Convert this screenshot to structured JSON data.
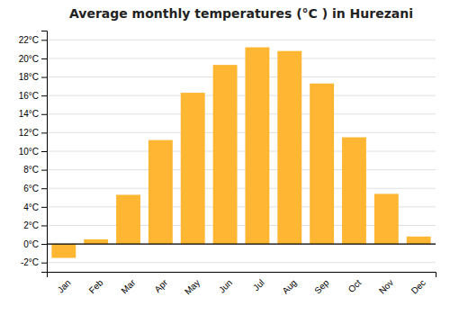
{
  "chart_data": {
    "type": "bar",
    "title": "Average monthly temperatures (°C ) in Hurezani",
    "categories": [
      "Jan",
      "Feb",
      "Mar",
      "Apr",
      "May",
      "Jun",
      "Jul",
      "Aug",
      "Sep",
      "Oct",
      "Nov",
      "Dec"
    ],
    "values": [
      -1.5,
      0.5,
      5.3,
      11.2,
      16.3,
      19.3,
      21.2,
      20.8,
      17.3,
      11.5,
      5.4,
      0.8
    ],
    "color": "#FFB733",
    "ylim": [
      -3.0,
      23.0
    ],
    "yticks": [
      {
        "value": -2,
        "label": "-2°C"
      },
      {
        "value": 0,
        "label": "0°C"
      },
      {
        "value": 2,
        "label": "2°C"
      },
      {
        "value": 4,
        "label": "4°C"
      },
      {
        "value": 6,
        "label": "6°C"
      },
      {
        "value": 8,
        "label": "8°C"
      },
      {
        "value": 10,
        "label": "10°C"
      },
      {
        "value": 12,
        "label": "12°C"
      },
      {
        "value": 14,
        "label": "14°C"
      },
      {
        "value": 16,
        "label": "16°C"
      },
      {
        "value": 18,
        "label": "18°C"
      },
      {
        "value": 20,
        "label": "20°C"
      },
      {
        "value": 22,
        "label": "22°C"
      }
    ],
    "grid": true
  }
}
